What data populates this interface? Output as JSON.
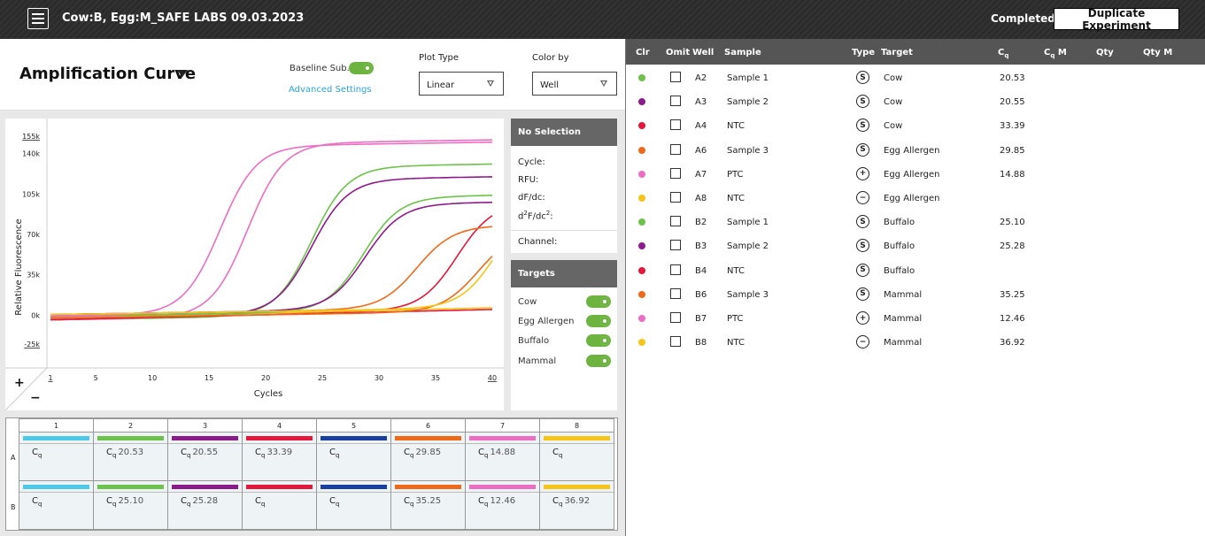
{
  "header": {
    "title": "Cow:B, Egg:M_SAFE LABS 09.03.2023",
    "status": "Completed",
    "duplicate_label": "Duplicate Experiment"
  },
  "toolbar": {
    "plot_title": "Amplification Curve",
    "baseline_label": "Baseline Sub.",
    "advanced_label": "Advanced Settings",
    "plot_type_label": "Plot Type",
    "plot_type_value": "Linear",
    "color_by_label": "Color by",
    "color_by_value": "Well"
  },
  "chart_data": {
    "type": "line",
    "xlabel": "Cycles",
    "ylabel": "Relative Fluorescence",
    "xlim": [
      1,
      40
    ],
    "ylim": [
      -25000,
      155000
    ],
    "x_ticks": [
      "1",
      "5",
      "10",
      "15",
      "20",
      "25",
      "30",
      "35",
      "40"
    ],
    "y_ticks": [
      "155k",
      "140k",
      "105k",
      "70k",
      "35k",
      "0k",
      "-25k"
    ],
    "series": [
      {
        "well": "A2",
        "color": "#6cc24a",
        "cq": 20.53,
        "plateau": 125000
      },
      {
        "well": "A3",
        "color": "#8b1a8b",
        "cq": 20.55,
        "plateau": 114000
      },
      {
        "well": "A4",
        "color": "#e4173c",
        "cq": 33.39,
        "plateau": 92000
      },
      {
        "well": "A6",
        "color": "#ee6a1a",
        "cq": 29.85,
        "plateau": 72000
      },
      {
        "well": "A7",
        "color": "#ec6ec2",
        "cq": 14.88,
        "plateau": 146000
      },
      {
        "well": "A8",
        "color": "#f5c518",
        "cq": null,
        "plateau": 5000
      },
      {
        "well": "B2",
        "color": "#6cc24a",
        "cq": 25.1,
        "plateau": 98000
      },
      {
        "well": "B3",
        "color": "#8b1a8b",
        "cq": 25.28,
        "plateau": 92000
      },
      {
        "well": "B4",
        "color": "#e4173c",
        "cq": null,
        "plateau": 5000
      },
      {
        "well": "B6",
        "color": "#ee6a1a",
        "cq": 35.25,
        "plateau": 67000
      },
      {
        "well": "B7",
        "color": "#ec6ec2",
        "cq": 12.46,
        "plateau": 144000
      },
      {
        "well": "B8",
        "color": "#f5c518",
        "cq": 36.92,
        "plateau": 95000
      }
    ]
  },
  "selection": {
    "title": "No Selection",
    "cycle": "Cycle:",
    "rfu": "RFU:",
    "dfdc": "dF/dc:",
    "d2": "d",
    "d2_sup": "2",
    "d2_mid": "F/dc",
    "d2_sup2": "2",
    "d2_end": ":",
    "channel": "Channel:"
  },
  "targets": {
    "title": "Targets",
    "items": [
      "Cow",
      "Egg Allergen",
      "Buffalo",
      "Mammal"
    ]
  },
  "zoom": {
    "plus": "+",
    "minus": "−"
  },
  "plate": {
    "columns": [
      "1",
      "2",
      "3",
      "4",
      "5",
      "6",
      "7",
      "8"
    ],
    "rows": [
      "A",
      "B"
    ],
    "cq_label": "C",
    "cq_sub": "q",
    "colors": [
      "#4ec8e8",
      "#6cc24a",
      "#8b1a8b",
      "#e4173c",
      "#1a3fa0",
      "#ee6a1a",
      "#ec6ec2",
      "#f5c518"
    ],
    "values": [
      [
        "",
        "20.53",
        "20.55",
        "33.39",
        "",
        "29.85",
        "14.88",
        ""
      ],
      [
        "",
        "25.10",
        "25.28",
        "",
        "",
        "35.25",
        "12.46",
        "36.92"
      ]
    ]
  },
  "table": {
    "headers": {
      "clr": "Clr",
      "omit": "Omit",
      "well": "Well",
      "sample": "Sample",
      "type": "Type",
      "target": "Target",
      "cq": "C",
      "cq_sub": "q",
      "cqm": "C",
      "cqm_sub": "q",
      "cqm_end": " M",
      "qty": "Qty",
      "qtym": "Qty M"
    },
    "rows": [
      {
        "color": "#6cc24a",
        "well": "A2",
        "sample": "Sample 1",
        "type": "S",
        "target": "Cow",
        "cq": "20.53"
      },
      {
        "color": "#8b1a8b",
        "well": "A3",
        "sample": "Sample 2",
        "type": "S",
        "target": "Cow",
        "cq": "20.55"
      },
      {
        "color": "#e4173c",
        "well": "A4",
        "sample": "NTC",
        "type": "S",
        "target": "Cow",
        "cq": "33.39"
      },
      {
        "color": "#ee6a1a",
        "well": "A6",
        "sample": "Sample 3",
        "type": "S",
        "target": "Egg Allergen",
        "cq": "29.85"
      },
      {
        "color": "#ec6ec2",
        "well": "A7",
        "sample": "PTC",
        "type": "+",
        "target": "Egg Allergen",
        "cq": "14.88"
      },
      {
        "color": "#f5c518",
        "well": "A8",
        "sample": "NTC",
        "type": "−",
        "target": "Egg Allergen",
        "cq": ""
      },
      {
        "color": "#6cc24a",
        "well": "B2",
        "sample": "Sample 1",
        "type": "S",
        "target": "Buffalo",
        "cq": "25.10"
      },
      {
        "color": "#8b1a8b",
        "well": "B3",
        "sample": "Sample 2",
        "type": "S",
        "target": "Buffalo",
        "cq": "25.28"
      },
      {
        "color": "#e4173c",
        "well": "B4",
        "sample": "NTC",
        "type": "S",
        "target": "Buffalo",
        "cq": ""
      },
      {
        "color": "#ee6a1a",
        "well": "B6",
        "sample": "Sample 3",
        "type": "S",
        "target": "Mammal",
        "cq": "35.25"
      },
      {
        "color": "#ec6ec2",
        "well": "B7",
        "sample": "PTC",
        "type": "+",
        "target": "Mammal",
        "cq": "12.46"
      },
      {
        "color": "#f5c518",
        "well": "B8",
        "sample": "NTC",
        "type": "−",
        "target": "Mammal",
        "cq": "36.92"
      }
    ]
  }
}
